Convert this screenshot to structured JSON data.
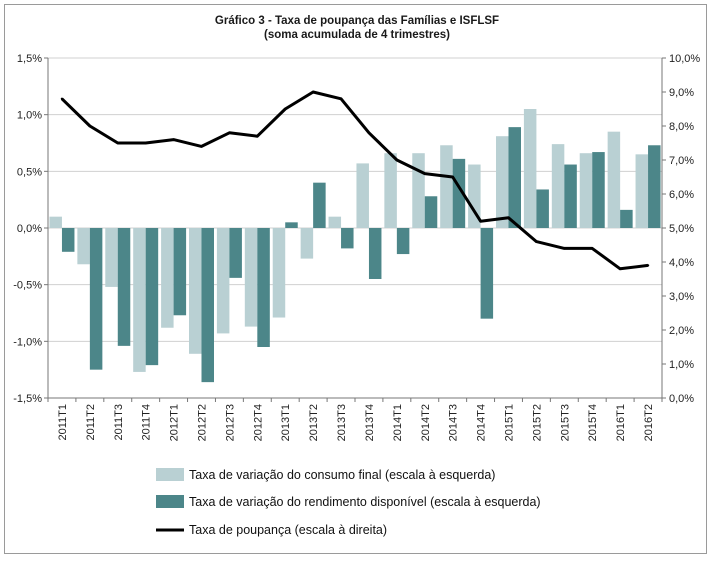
{
  "chart_data": {
    "type": "bar",
    "title": "Gráfico  3 - Taxa de poupança das Famílias e ISFLSF",
    "subtitle": "(soma acumulada de 4 trimestres)",
    "categories": [
      "2011T1",
      "2011T2",
      "2011T3",
      "2011T4",
      "2012T1",
      "2012T2",
      "2012T3",
      "2012T4",
      "2013T1",
      "2013T2",
      "2013T3",
      "2013T4",
      "2014T1",
      "2014T2",
      "2014T3",
      "2014T4",
      "2015T1",
      "2015T2",
      "2015T3",
      "2015T4",
      "2016T1",
      "2016T2"
    ],
    "left_axis": {
      "ylim": [
        -1.5,
        1.5
      ],
      "ticks": [
        -1.5,
        -1.0,
        -0.5,
        0.0,
        0.5,
        1.0,
        1.5
      ],
      "tick_labels": [
        "-1,5%",
        "-1,0%",
        "-0,5%",
        "0,0%",
        "0,5%",
        "1,0%",
        "1,5%"
      ]
    },
    "right_axis": {
      "ylim": [
        0,
        10
      ],
      "ticks": [
        0,
        1,
        2,
        3,
        4,
        5,
        6,
        7,
        8,
        9,
        10
      ],
      "tick_labels": [
        "0,0%",
        "1,0%",
        "2,0%",
        "3,0%",
        "4,0%",
        "5,0%",
        "6,0%",
        "7,0%",
        "8,0%",
        "9,0%",
        "10,0%"
      ]
    },
    "series": [
      {
        "name": "Taxa de variação do consumo final (escala à esquerda)",
        "type": "bar",
        "axis": "left",
        "color": "#b9d0d3",
        "values": [
          0.1,
          -0.32,
          -0.52,
          -1.27,
          -0.88,
          -1.11,
          -0.93,
          -0.87,
          -0.79,
          -0.27,
          0.1,
          0.57,
          0.66,
          0.66,
          0.73,
          0.56,
          0.81,
          1.05,
          0.74,
          0.66,
          0.85,
          0.65
        ]
      },
      {
        "name": "Taxa de variação do rendimento disponível (escala à esquerda)",
        "type": "bar",
        "axis": "left",
        "color": "#4c8689",
        "values": [
          -0.21,
          -1.25,
          -1.04,
          -1.21,
          -0.77,
          -1.36,
          -0.44,
          -1.05,
          0.05,
          0.4,
          -0.18,
          -0.45,
          -0.23,
          0.28,
          0.61,
          -0.8,
          0.89,
          0.34,
          0.56,
          0.67,
          0.16,
          0.73
        ]
      },
      {
        "name": "Taxa de poupança (escala à direita)",
        "type": "line",
        "axis": "right",
        "color": "#000000",
        "values": [
          8.8,
          8.0,
          7.5,
          7.5,
          7.6,
          7.4,
          7.8,
          7.7,
          8.5,
          9.0,
          8.8,
          7.8,
          7.0,
          6.6,
          6.5,
          5.2,
          5.3,
          4.6,
          4.4,
          4.4,
          3.8,
          3.9
        ]
      }
    ],
    "grid": true,
    "legend_position": "bottom"
  }
}
